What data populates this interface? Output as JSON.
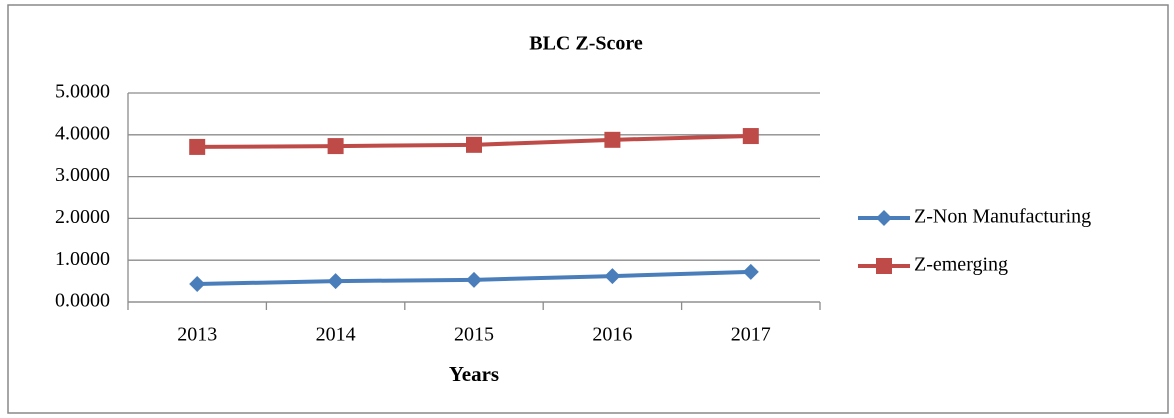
{
  "chart_data": {
    "type": "line",
    "title": "BLC Z-Score",
    "x_label": "Years",
    "categories": [
      "2013",
      "2014",
      "2015",
      "2016",
      "2017"
    ],
    "series": [
      {
        "name": "Z-Non Manufacturing",
        "color": "#4a7ebb",
        "marker": "diamond",
        "values": [
          0.43,
          0.5,
          0.53,
          0.62,
          0.72
        ]
      },
      {
        "name": "Z-emerging",
        "color": "#be4b48",
        "marker": "square",
        "values": [
          3.71,
          3.73,
          3.76,
          3.88,
          3.97
        ]
      }
    ],
    "ylim": [
      0,
      5
    ],
    "yticks": [
      {
        "value": 0,
        "label": "0.0000"
      },
      {
        "value": 1,
        "label": "1.0000"
      },
      {
        "value": 2,
        "label": "2.0000"
      },
      {
        "value": 3,
        "label": "3.0000"
      },
      {
        "value": 4,
        "label": "4.0000"
      },
      {
        "value": 5,
        "label": "5.0000"
      }
    ],
    "grid": true,
    "legend": "right"
  }
}
